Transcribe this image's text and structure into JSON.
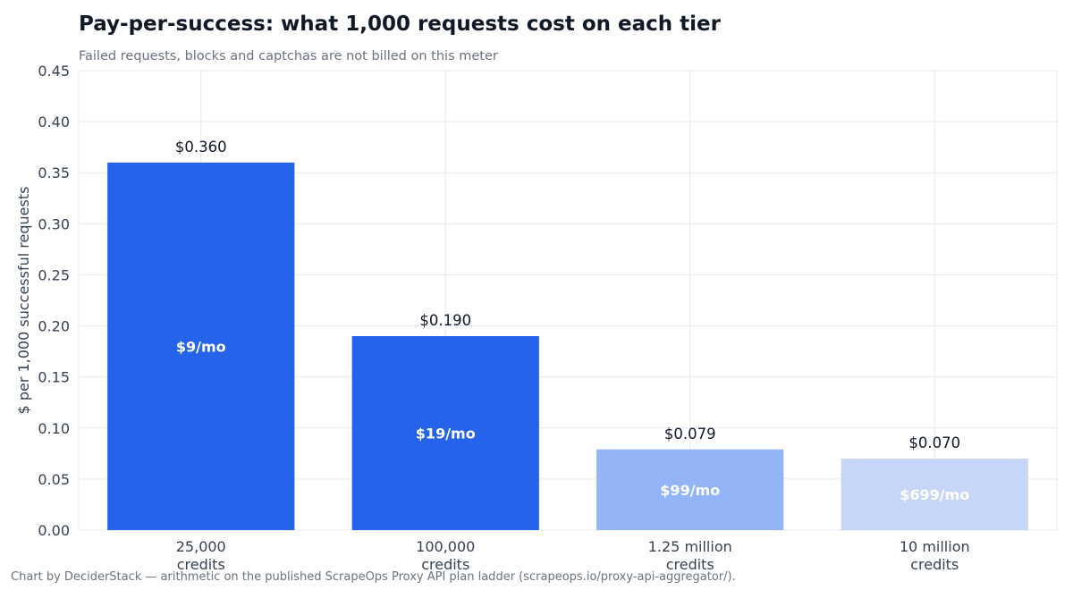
{
  "chart_data": {
    "type": "bar",
    "title": "Pay-per-success: what 1,000 requests cost on each tier",
    "subtitle": "Failed requests, blocks and captchas are not billed on this meter",
    "xlabel": "",
    "ylabel": "$ per 1,000 successful requests",
    "ylim": [
      0,
      0.45
    ],
    "yticks": [
      0.0,
      0.05,
      0.1,
      0.15,
      0.2,
      0.25,
      0.3,
      0.35,
      0.4,
      0.45
    ],
    "grid": true,
    "categories": [
      [
        "25,000",
        "credits"
      ],
      [
        "100,000",
        "credits"
      ],
      [
        "1.25 million",
        "credits"
      ],
      [
        "10 million",
        "credits"
      ]
    ],
    "values": [
      0.36,
      0.19,
      0.079,
      0.07
    ],
    "value_labels": [
      "$0.360",
      "$0.190",
      "$0.079",
      "$0.070"
    ],
    "plan_prices": [
      "$9/mo",
      "$19/mo",
      "$99/mo",
      "$699/mo"
    ],
    "colors": [
      "#2563eb",
      "#2563eb",
      "#93b4f7",
      "#c7d6f6"
    ],
    "grid_color": "#e5e9f2"
  },
  "footer": "Chart by DeciderStack — arithmetic on the published ScrapeOps Proxy API plan ladder (scrapeops.io/proxy-api-aggregator/)."
}
